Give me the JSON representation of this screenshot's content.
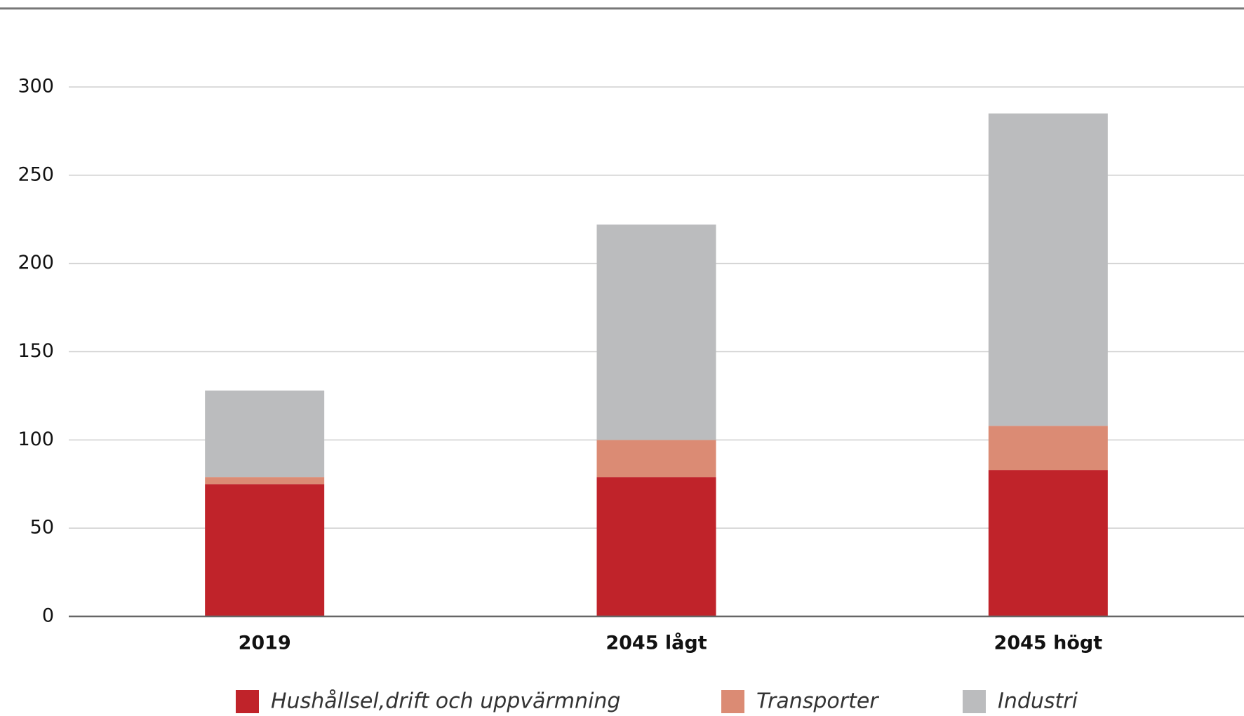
{
  "chart_data": {
    "type": "stacked_bar",
    "categories": [
      "2019",
      "2045 lågt",
      "2045 högt"
    ],
    "series": [
      {
        "name": "Hushållsel,drift och uppvärmning",
        "color": "#c0232a",
        "values": [
          75,
          79,
          83
        ]
      },
      {
        "name": "Transporter",
        "color": "#db8b74",
        "values": [
          4,
          21,
          25
        ]
      },
      {
        "name": "Industri",
        "color": "#bbbcbe",
        "values": [
          49,
          122,
          177
        ]
      }
    ],
    "ylim": [
      0,
      300
    ],
    "yticks": [
      0,
      50,
      100,
      150,
      200,
      250,
      300
    ],
    "grid": true
  }
}
